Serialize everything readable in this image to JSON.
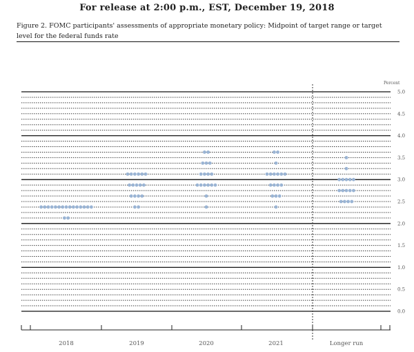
{
  "header": {
    "release": "For release at 2:00 p.m., EST, December 19, 2018"
  },
  "figure": {
    "caption": "Figure 2. FOMC participants' assessments of appropriate monetary policy: Midpoint of target range or target level for the federal funds rate"
  },
  "colors": {
    "dot": "#9ab4d4",
    "line": "#111111",
    "dotted": "#333333"
  },
  "chart_data": {
    "type": "scatter",
    "unit_label": "Percent",
    "y_range": [
      0.0,
      5.0
    ],
    "y_ticks": [
      "0.0",
      "0.5",
      "1.0",
      "1.5",
      "2.0",
      "2.5",
      "3.0",
      "3.5",
      "4.0",
      "4.5",
      "5.0"
    ],
    "grid": "solid at whole percents, dotted at 0.125 steps",
    "categories": [
      "2018",
      "2019",
      "2020",
      "2021",
      "Longer run"
    ],
    "series": [
      {
        "category": "2018",
        "points": [
          {
            "y": 2.375,
            "count": 15
          },
          {
            "y": 2.125,
            "count": 2
          }
        ]
      },
      {
        "category": "2019",
        "points": [
          {
            "y": 3.125,
            "count": 6
          },
          {
            "y": 2.875,
            "count": 5
          },
          {
            "y": 2.625,
            "count": 4
          },
          {
            "y": 2.375,
            "count": 2
          }
        ]
      },
      {
        "category": "2020",
        "points": [
          {
            "y": 3.625,
            "count": 2
          },
          {
            "y": 3.375,
            "count": 3
          },
          {
            "y": 3.125,
            "count": 4
          },
          {
            "y": 2.875,
            "count": 6
          },
          {
            "y": 2.625,
            "count": 1
          },
          {
            "y": 2.375,
            "count": 1
          }
        ]
      },
      {
        "category": "2021",
        "points": [
          {
            "y": 3.625,
            "count": 2
          },
          {
            "y": 3.375,
            "count": 1
          },
          {
            "y": 3.125,
            "count": 6
          },
          {
            "y": 2.875,
            "count": 4
          },
          {
            "y": 2.625,
            "count": 3
          },
          {
            "y": 2.375,
            "count": 1
          }
        ]
      },
      {
        "category": "Longer run",
        "points": [
          {
            "y": 3.5,
            "count": 1
          },
          {
            "y": 3.25,
            "count": 1
          },
          {
            "y": 3.0,
            "count": 5
          },
          {
            "y": 2.75,
            "count": 5
          },
          {
            "y": 2.5,
            "count": 4
          }
        ]
      }
    ]
  }
}
